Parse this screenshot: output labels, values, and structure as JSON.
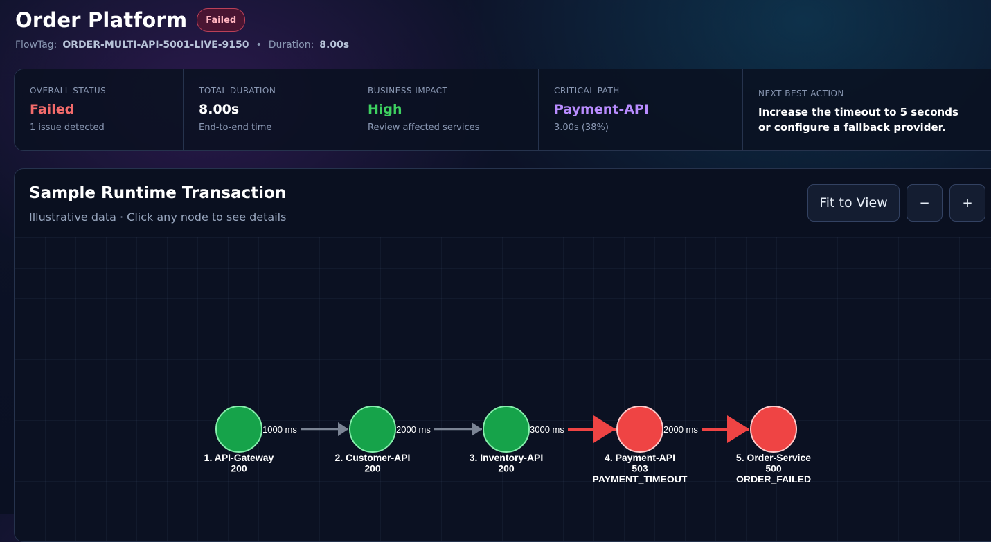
{
  "header": {
    "title": "Order Platform",
    "status_badge": "Failed",
    "flowtag_label": "FlowTag:",
    "flowtag_value": "ORDER-MULTI-API-5001-LIVE-9150",
    "separator": "•",
    "duration_label": "Duration:",
    "duration_value": "8.00s"
  },
  "summary": {
    "overall_status": {
      "label": "OVERALL STATUS",
      "value": "Failed",
      "sub": "1 issue detected"
    },
    "total_duration": {
      "label": "TOTAL DURATION",
      "value": "8.00s",
      "sub": "End-to-end time"
    },
    "business_impact": {
      "label": "BUSINESS IMPACT",
      "value": "High",
      "sub": "Review affected services"
    },
    "critical_path": {
      "label": "CRITICAL PATH",
      "value": "Payment-API",
      "sub": "3.00s (38%)"
    },
    "next_best_action": {
      "label": "NEXT BEST ACTION",
      "value": "Increase the timeout to 5 seconds or configure a fallback provider."
    }
  },
  "graph_panel": {
    "title": "Sample Runtime Transaction",
    "subtitle": "Illustrative data · Click any node to see details",
    "buttons": {
      "fit": "Fit to View",
      "zoom_out": "−",
      "zoom_in": "+"
    }
  },
  "colors": {
    "success": "#16a34a",
    "success_stroke": "#86efac",
    "error": "#ef4444",
    "error_stroke": "#fecaca",
    "edge_ok": "#7b8494",
    "edge_error": "#ef4444"
  },
  "flow": {
    "nodes": [
      {
        "label": "1. API-Gateway",
        "status_code": "200",
        "error_code": "",
        "state": "success"
      },
      {
        "label": "2. Customer-API",
        "status_code": "200",
        "error_code": "",
        "state": "success"
      },
      {
        "label": "3. Inventory-API",
        "status_code": "200",
        "error_code": "",
        "state": "success"
      },
      {
        "label": "4. Payment-API",
        "status_code": "503",
        "error_code": "PAYMENT_TIMEOUT",
        "state": "error"
      },
      {
        "label": "5. Order-Service",
        "status_code": "500",
        "error_code": "ORDER_FAILED",
        "state": "error"
      }
    ],
    "edges": [
      {
        "label": "1000 ms",
        "state": "ok"
      },
      {
        "label": "2000 ms",
        "state": "ok"
      },
      {
        "label": "3000 ms",
        "state": "error"
      },
      {
        "label": "2000 ms",
        "state": "error"
      }
    ]
  }
}
